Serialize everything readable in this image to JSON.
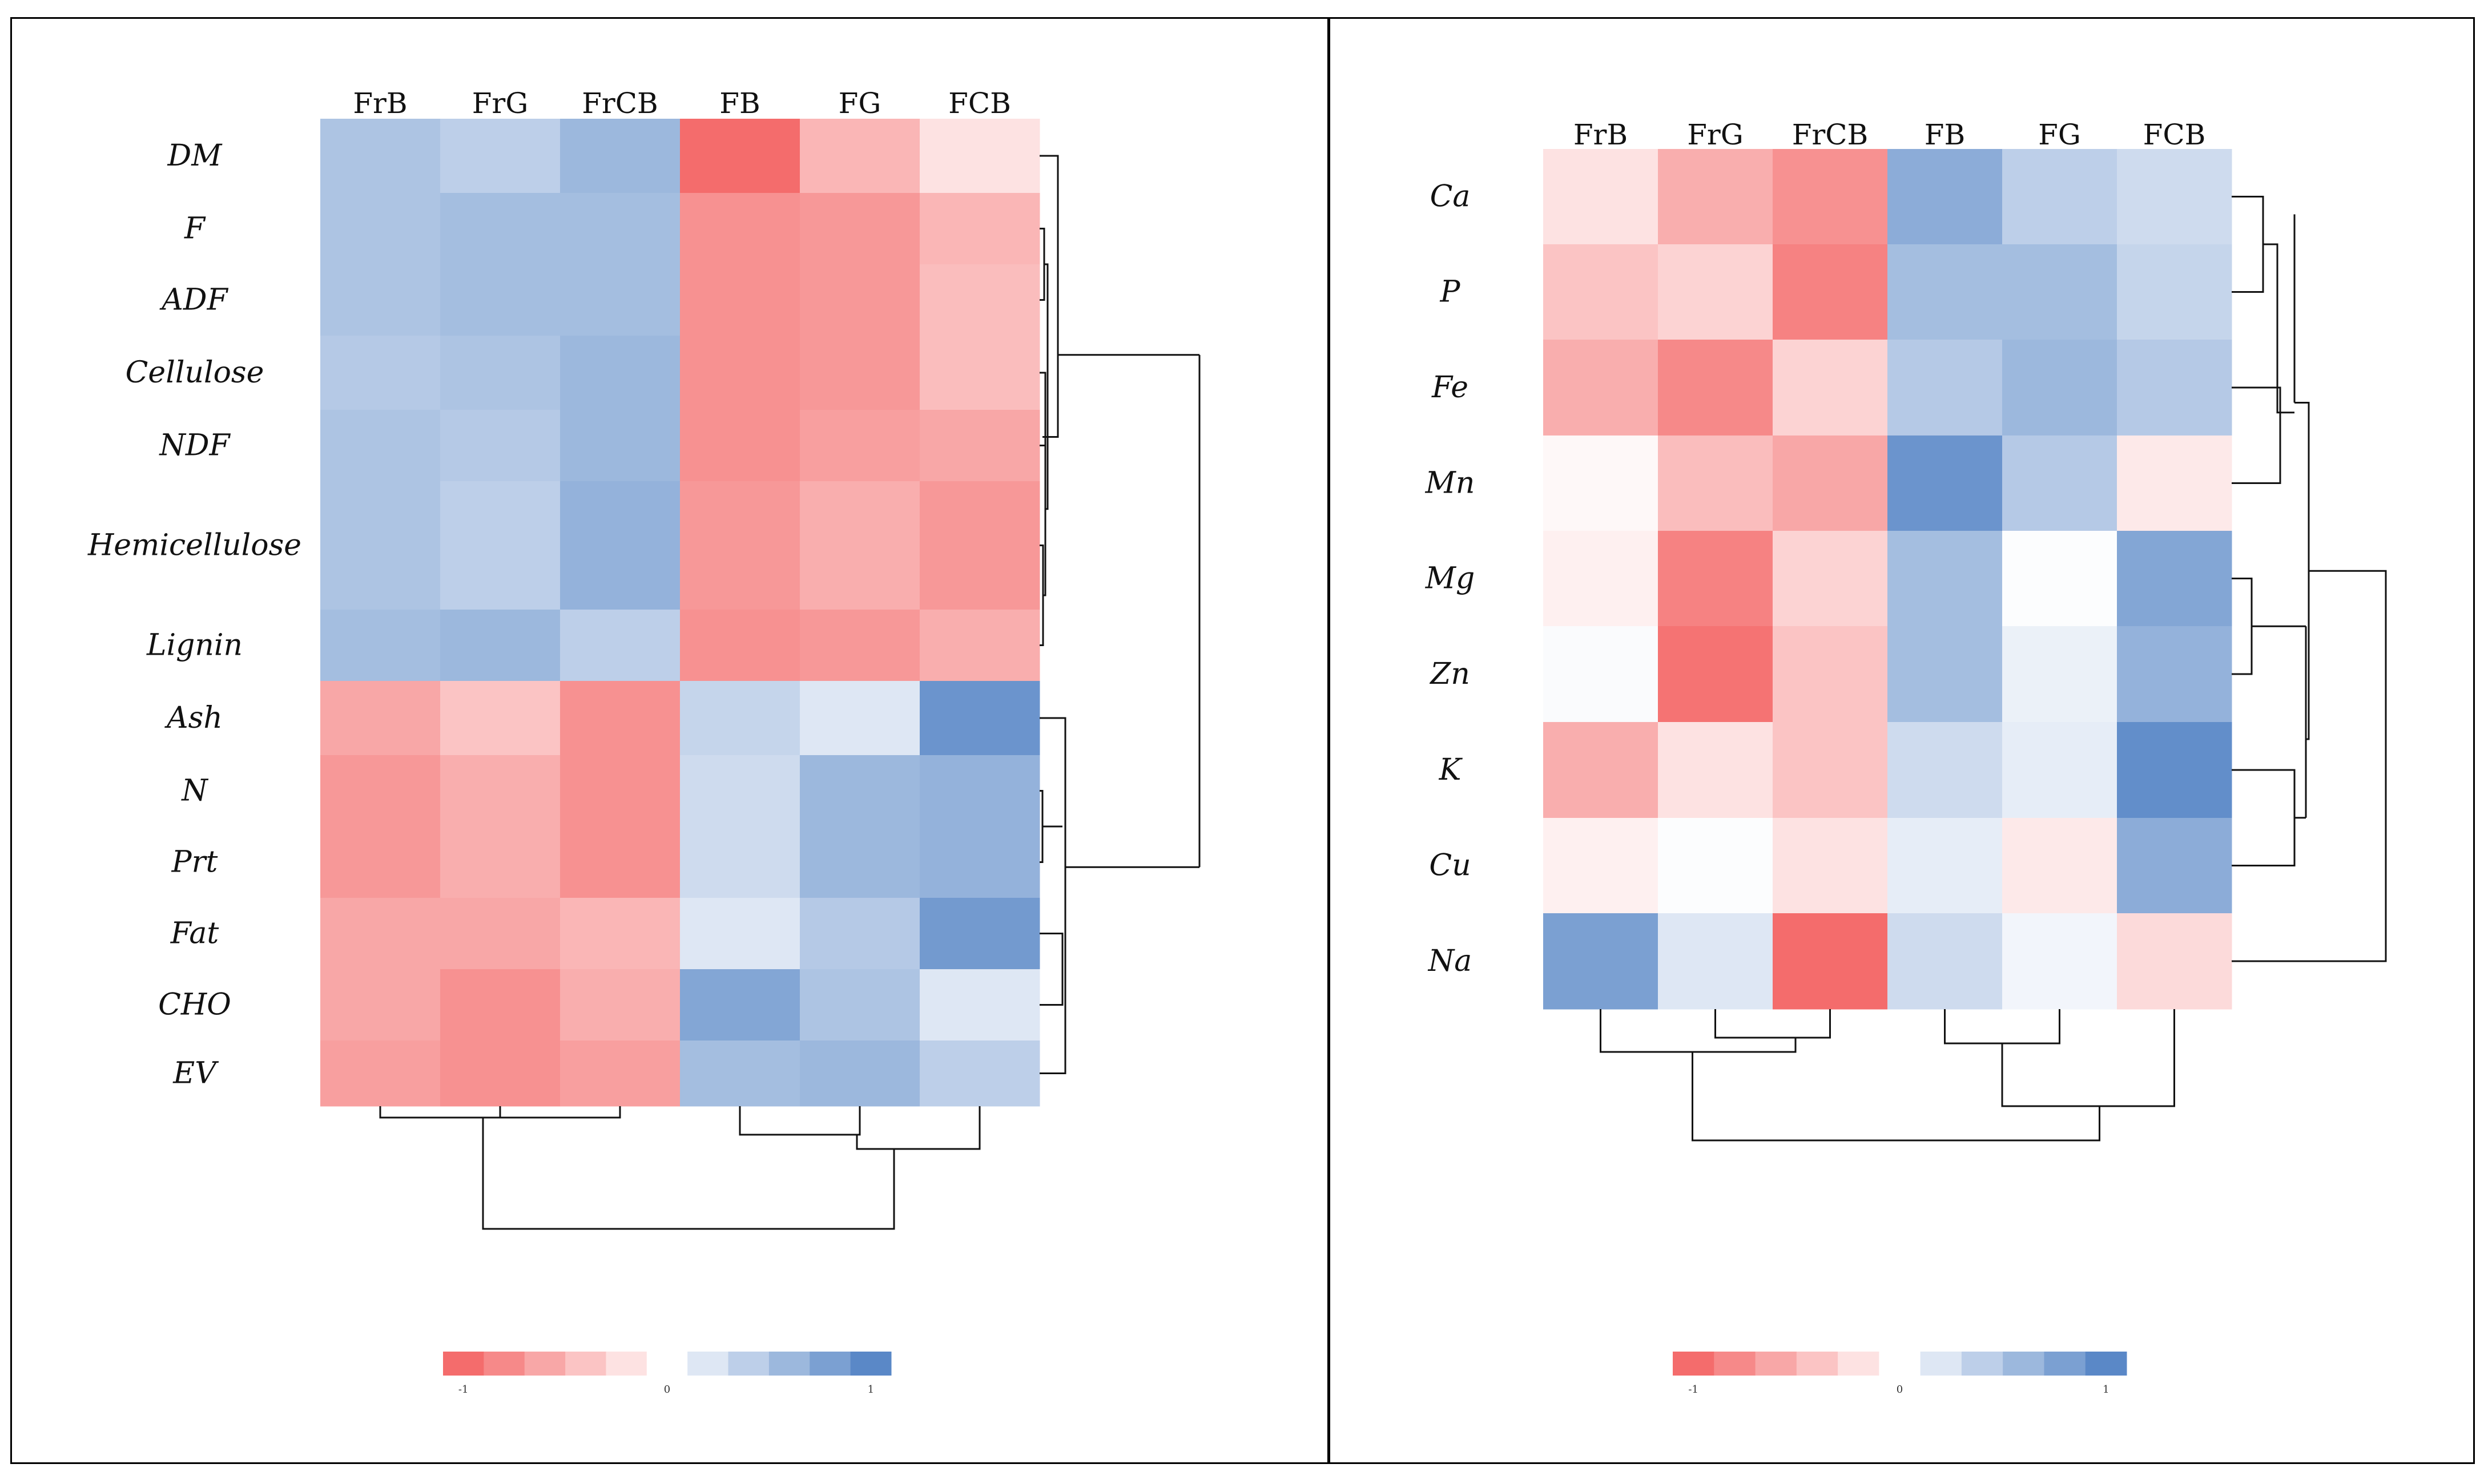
{
  "chart_data": [
    {
      "type": "heatmap",
      "columns": [
        "FrB",
        "FrG",
        "FrCB",
        "FB",
        "FG",
        "FCB"
      ],
      "rows": [
        "DM",
        "F",
        "ADF",
        "Cellulose",
        "NDF",
        "Hemicellulose",
        "Lignin",
        "Ash",
        "N",
        "Prt",
        "Fat",
        "CHO",
        "EV"
      ],
      "values": [
        [
          0.5,
          0.4,
          0.6,
          -1.0,
          -0.5,
          -0.2
        ],
        [
          0.5,
          0.55,
          0.55,
          -0.75,
          -0.7,
          -0.5
        ],
        [
          0.5,
          0.55,
          0.55,
          -0.75,
          -0.7,
          -0.45
        ],
        [
          0.45,
          0.5,
          0.6,
          -0.75,
          -0.7,
          -0.45
        ],
        [
          0.5,
          0.45,
          0.6,
          -0.75,
          -0.65,
          -0.6
        ],
        [
          0.5,
          0.4,
          0.65,
          -0.7,
          -0.55,
          -0.7
        ],
        [
          0.55,
          0.6,
          0.4,
          -0.75,
          -0.7,
          -0.55
        ],
        [
          -0.6,
          -0.4,
          -0.75,
          0.35,
          0.2,
          0.9
        ],
        [
          -0.7,
          -0.55,
          -0.75,
          0.3,
          0.6,
          0.65
        ],
        [
          -0.7,
          -0.55,
          -0.75,
          0.3,
          0.6,
          0.65
        ],
        [
          -0.6,
          -0.6,
          -0.5,
          0.2,
          0.45,
          0.85
        ],
        [
          -0.6,
          -0.75,
          -0.55,
          0.75,
          0.5,
          0.2
        ],
        [
          -0.65,
          -0.75,
          -0.65,
          0.55,
          0.6,
          0.4
        ]
      ],
      "colorbar": {
        "ticks": [
          "-1",
          "0",
          "1"
        ],
        "min": -1,
        "max": 1,
        "steps": 11
      },
      "row_dendrogram": "right",
      "column_dendrogram": "bottom"
    },
    {
      "type": "heatmap",
      "columns": [
        "FrB",
        "FrG",
        "FrCB",
        "FB",
        "FG",
        "FCB"
      ],
      "rows": [
        "Ca",
        "P",
        "Fe",
        "Mn",
        "Mg",
        "Zn",
        "K",
        "Cu",
        "Na"
      ],
      "values": [
        [
          -0.2,
          -0.55,
          -0.75,
          0.7,
          0.4,
          0.3
        ],
        [
          -0.4,
          -0.3,
          -0.85,
          0.55,
          0.55,
          0.35
        ],
        [
          -0.55,
          -0.8,
          -0.3,
          0.45,
          0.6,
          0.45
        ],
        [
          -0.05,
          -0.45,
          -0.6,
          0.9,
          0.45,
          -0.15
        ],
        [
          -0.1,
          -0.85,
          -0.3,
          0.55,
          0.02,
          0.75
        ],
        [
          0.03,
          -0.95,
          -0.4,
          0.55,
          0.12,
          0.65
        ],
        [
          -0.55,
          -0.2,
          -0.4,
          0.3,
          0.15,
          0.95
        ],
        [
          -0.1,
          0.02,
          -0.2,
          0.15,
          -0.15,
          0.7
        ],
        [
          0.8,
          0.2,
          -1.0,
          0.3,
          0.08,
          -0.25
        ]
      ],
      "colorbar": {
        "ticks": [
          "-1",
          "0",
          "1"
        ],
        "min": -1,
        "max": 1,
        "steps": 11
      },
      "row_dendrogram": "right",
      "column_dendrogram": "bottom"
    }
  ],
  "colors": {
    "negative": "#f46c6c",
    "neutral": "#ffffff",
    "positive": "#5a88c7"
  }
}
